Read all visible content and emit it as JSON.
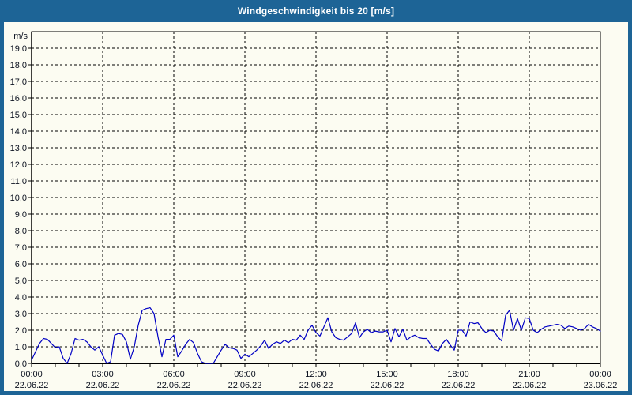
{
  "window": {
    "title": "Windgeschwindigkeit bis 20 [m/s]"
  },
  "colors": {
    "titlebar_bg": "#1d6496",
    "content_bg": "#fcfcf2",
    "line": "#0000c4",
    "grid": "#000000",
    "axis": "#000000",
    "label_text": "#0c1220",
    "title_text": "#ffffff"
  },
  "chart_data": {
    "type": "line",
    "title": "Windgeschwindigkeit bis 20 [m/s]",
    "ylabel": "m/s",
    "ylim": [
      0,
      20
    ],
    "ytick_step": 1,
    "ytick_labels": [
      "0,0",
      "1,0",
      "2,0",
      "3,0",
      "4,0",
      "5,0",
      "6,0",
      "7,0",
      "8,0",
      "9,0",
      "10,0",
      "11,0",
      "12,0",
      "13,0",
      "14,0",
      "15,0",
      "16,0",
      "17,0",
      "18,0",
      "19,0"
    ],
    "xlim_hours": [
      0,
      24
    ],
    "minor_xtick_every_hours": 1,
    "vgrid_hours": [
      3,
      6,
      9,
      12,
      15,
      18,
      21
    ],
    "grid_style": "dashed",
    "legend": "none",
    "xticks": [
      {
        "hour": 0,
        "time": "00:00",
        "date": "22.06.22"
      },
      {
        "hour": 3,
        "time": "03:00",
        "date": "22.06.22"
      },
      {
        "hour": 6,
        "time": "06:00",
        "date": "22.06.22"
      },
      {
        "hour": 9,
        "time": "09:00",
        "date": "22.06.22"
      },
      {
        "hour": 12,
        "time": "12:00",
        "date": "22.06.22"
      },
      {
        "hour": 15,
        "time": "15:00",
        "date": "22.06.22"
      },
      {
        "hour": 18,
        "time": "18:00",
        "date": "22.06.22"
      },
      {
        "hour": 21,
        "time": "21:00",
        "date": "22.06.22"
      },
      {
        "hour": 24,
        "time": "00:00",
        "date": "23.06.22"
      }
    ],
    "series_name": "Windgeschwindigkeit",
    "unit": "m/s",
    "sample_interval_minutes": 10,
    "values": [
      0.2,
      0.7,
      1.2,
      1.5,
      1.45,
      1.2,
      0.95,
      1.0,
      0.3,
      0.0,
      0.6,
      1.5,
      1.4,
      1.45,
      1.3,
      1.0,
      0.8,
      1.0,
      0.5,
      0.0,
      0.1,
      1.7,
      1.8,
      1.75,
      1.3,
      0.25,
      1.0,
      2.3,
      3.2,
      3.3,
      3.35,
      3.0,
      1.6,
      0.4,
      1.45,
      1.45,
      1.7,
      0.4,
      0.75,
      1.15,
      1.45,
      1.25,
      0.6,
      0.1,
      0.0,
      0.0,
      0.0,
      0.4,
      0.8,
      1.15,
      0.95,
      0.9,
      0.8,
      0.3,
      0.55,
      0.4,
      0.6,
      0.8,
      1.05,
      1.4,
      0.9,
      1.15,
      1.3,
      1.2,
      1.4,
      1.25,
      1.45,
      1.4,
      1.7,
      1.45,
      2.0,
      2.3,
      1.85,
      1.65,
      2.2,
      2.75,
      1.9,
      1.55,
      1.45,
      1.4,
      1.6,
      1.8,
      2.45,
      1.55,
      1.9,
      2.05,
      1.85,
      1.95,
      1.9,
      1.9,
      2.0,
      1.3,
      2.1,
      1.6,
      2.05,
      1.4,
      1.6,
      1.7,
      1.55,
      1.5,
      1.5,
      1.15,
      0.85,
      0.75,
      1.2,
      1.45,
      1.1,
      0.8,
      2.0,
      2.0,
      1.65,
      2.5,
      2.4,
      2.45,
      2.1,
      1.85,
      2.0,
      1.95,
      1.6,
      1.35,
      2.9,
      3.2,
      2.0,
      2.7,
      2.0,
      2.75,
      2.7,
      2.0,
      1.85,
      2.05,
      2.2,
      2.25,
      2.3,
      2.35,
      2.3,
      2.1,
      2.25,
      2.2,
      2.1,
      2.0,
      2.1,
      2.35,
      2.2,
      2.1,
      1.95
    ]
  }
}
